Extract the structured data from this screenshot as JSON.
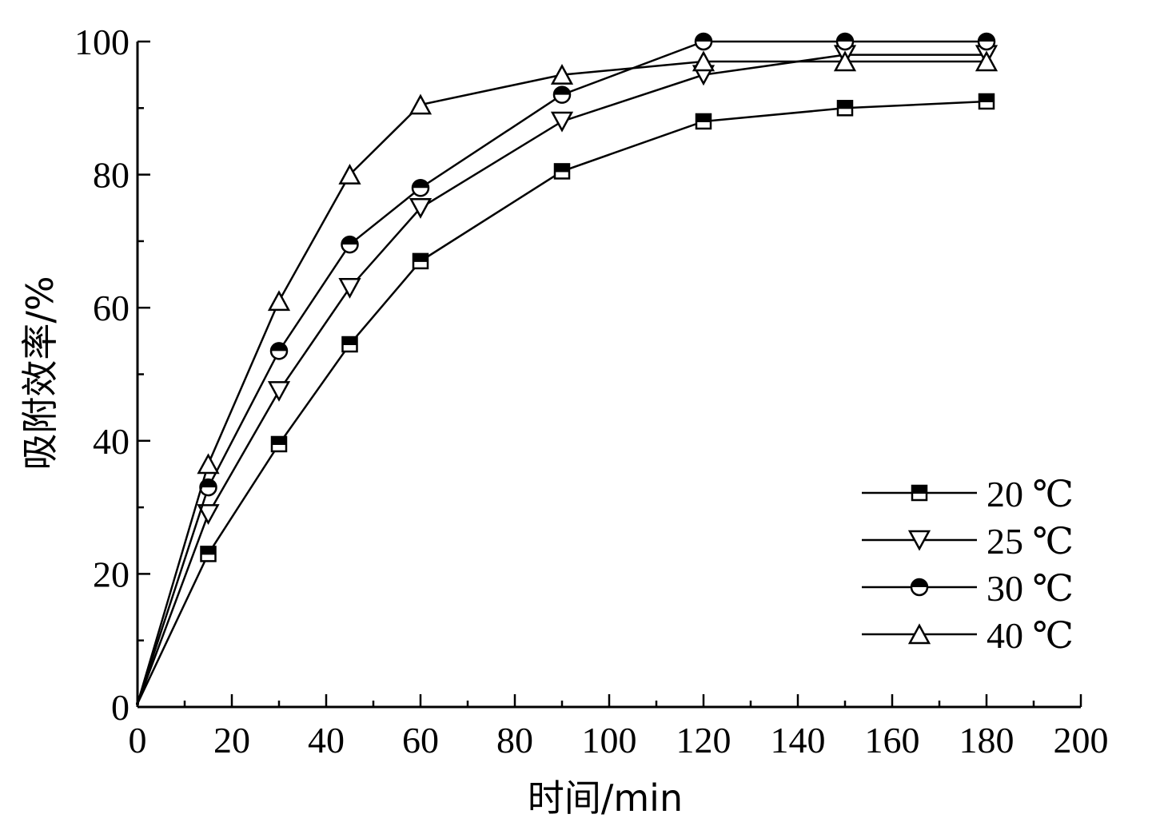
{
  "chart_data": {
    "type": "line",
    "title": "",
    "xlabel": "时间/min",
    "ylabel": "吸附效率/%",
    "xlim": [
      0,
      200
    ],
    "ylim": [
      0,
      100
    ],
    "xticks": [
      0,
      20,
      40,
      60,
      80,
      100,
      120,
      140,
      160,
      180,
      200
    ],
    "yticks": [
      0,
      20,
      40,
      60,
      80,
      100
    ],
    "x_minor_step": 10,
    "y_minor_step": 10,
    "grid": false,
    "legend_position": "bottom-right",
    "x": [
      0,
      15,
      30,
      45,
      60,
      90,
      120,
      150,
      180
    ],
    "series": [
      {
        "name": "20 ℃",
        "marker": "square",
        "values": [
          0.5,
          23.0,
          39.5,
          54.5,
          67.0,
          80.5,
          88.0,
          90.0,
          91.0
        ]
      },
      {
        "name": "25 ℃",
        "marker": "triangle-down",
        "values": [
          0.5,
          29.0,
          47.5,
          63.0,
          75.0,
          88.0,
          95.0,
          98.0,
          98.0
        ]
      },
      {
        "name": "30 ℃",
        "marker": "circle",
        "values": [
          0.5,
          33.0,
          53.5,
          69.5,
          78.0,
          92.0,
          100.0,
          100.0,
          100.0
        ]
      },
      {
        "name": "40 ℃",
        "marker": "triangle-up",
        "values": [
          0.5,
          36.5,
          61.0,
          80.0,
          90.5,
          95.0,
          97.0,
          97.0,
          97.0
        ]
      }
    ]
  }
}
